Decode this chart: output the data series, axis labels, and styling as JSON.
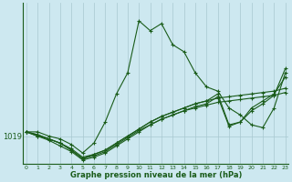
{
  "xlabel": "Graphe pression niveau de la mer (hPa)",
  "ylabel": "",
  "background_color": "#cde8f0",
  "plot_background": "#cde8f0",
  "grid_color": "#a8c8d0",
  "line_color": "#1a5c1a",
  "marker_color": "#1a5c1a",
  "yline_value": 1019,
  "xlim": [
    -0.3,
    23.3
  ],
  "ylim_bottom": 1017.0,
  "ylim_top": 1028.5,
  "xticks": [
    0,
    1,
    2,
    3,
    4,
    5,
    6,
    7,
    8,
    9,
    10,
    11,
    12,
    13,
    14,
    15,
    16,
    17,
    18,
    19,
    20,
    21,
    22,
    23
  ],
  "lines": [
    {
      "x": [
        0,
        1,
        2,
        3,
        4,
        5,
        6,
        7,
        8,
        9,
        10,
        11,
        12,
        13,
        14,
        15,
        16,
        17,
        18,
        19,
        20,
        21,
        22,
        23
      ],
      "y": [
        1019.3,
        1019.3,
        1019.0,
        1018.8,
        1018.4,
        1017.8,
        1018.5,
        1020.0,
        1022.0,
        1023.5,
        1027.2,
        1026.5,
        1027.0,
        1025.5,
        1025.0,
        1023.5,
        1022.5,
        1022.2,
        1021.0,
        1020.5,
        1019.8,
        1019.6,
        1021.0,
        1023.5
      ]
    },
    {
      "x": [
        0,
        1,
        2,
        3,
        4,
        5,
        6,
        7,
        8,
        9,
        10,
        11,
        12,
        13,
        14,
        15,
        16,
        17,
        18,
        19,
        20,
        21,
        22,
        23
      ],
      "y": [
        1019.3,
        1019.0,
        1018.8,
        1018.5,
        1018.1,
        1017.5,
        1017.7,
        1018.0,
        1018.5,
        1019.0,
        1019.5,
        1020.0,
        1020.4,
        1020.7,
        1021.0,
        1021.3,
        1021.5,
        1021.7,
        1021.8,
        1021.9,
        1022.0,
        1022.1,
        1022.2,
        1022.4
      ]
    },
    {
      "x": [
        0,
        1,
        2,
        3,
        4,
        5,
        6,
        7,
        8,
        9,
        10,
        11,
        12,
        13,
        14,
        15,
        16,
        17,
        18,
        19,
        20,
        21,
        22,
        23
      ],
      "y": [
        1019.3,
        1019.0,
        1018.7,
        1018.3,
        1017.9,
        1017.3,
        1017.5,
        1017.8,
        1018.3,
        1018.8,
        1019.3,
        1019.8,
        1020.2,
        1020.5,
        1020.8,
        1021.0,
        1021.2,
        1021.4,
        1021.5,
        1021.6,
        1021.7,
        1021.8,
        1021.9,
        1022.1
      ]
    },
    {
      "x": [
        0,
        1,
        2,
        3,
        4,
        5,
        6,
        7,
        8,
        9,
        10,
        11,
        12,
        13,
        14,
        15,
        16,
        17,
        18,
        19,
        20,
        21,
        22,
        23
      ],
      "y": [
        1019.3,
        1019.1,
        1018.8,
        1018.5,
        1018.0,
        1017.4,
        1017.6,
        1017.9,
        1018.4,
        1018.9,
        1019.4,
        1019.8,
        1020.2,
        1020.5,
        1020.8,
        1021.1,
        1021.3,
        1021.8,
        1019.7,
        1020.0,
        1021.0,
        1021.5,
        1022.0,
        1023.2
      ]
    },
    {
      "x": [
        0,
        1,
        2,
        3,
        4,
        5,
        6,
        7,
        8,
        9,
        10,
        11,
        12,
        13,
        14,
        15,
        16,
        17,
        18,
        19,
        20,
        21,
        22,
        23
      ],
      "y": [
        1019.3,
        1019.1,
        1018.8,
        1018.5,
        1018.0,
        1017.4,
        1017.7,
        1018.0,
        1018.5,
        1019.0,
        1019.5,
        1020.0,
        1020.4,
        1020.7,
        1021.0,
        1021.3,
        1021.5,
        1022.0,
        1019.8,
        1020.0,
        1020.8,
        1021.3,
        1021.9,
        1023.8
      ]
    }
  ]
}
